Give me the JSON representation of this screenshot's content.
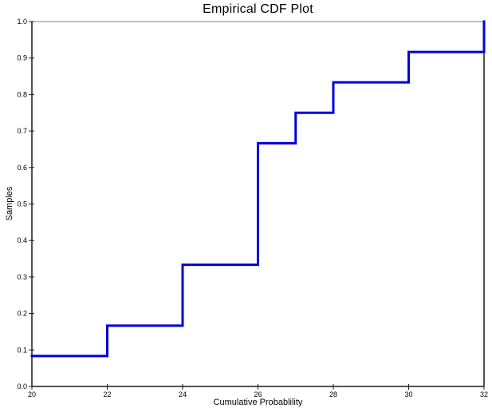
{
  "chart_data": {
    "type": "line",
    "subtype": "empirical-cdf-step",
    "title": "Empirical CDF Plot",
    "xlabel": "Cumulative Probablility",
    "ylabel": "Samples",
    "xlim": [
      20,
      32
    ],
    "ylim": [
      0.0,
      1.0
    ],
    "xticks": [
      20,
      22,
      24,
      26,
      28,
      30,
      32
    ],
    "xtick_labels": [
      "20",
      "22",
      "24",
      "26",
      "28",
      "30",
      "32"
    ],
    "yticks": [
      0.0,
      0.1,
      0.2,
      0.3,
      0.4,
      0.5,
      0.6,
      0.7,
      0.8,
      0.9,
      1.0
    ],
    "ytick_labels": [
      "0.0",
      "0.1",
      "0.2",
      "0.3",
      "0.4",
      "0.5",
      "0.6",
      "0.7",
      "0.8",
      "0.9",
      "1.0"
    ],
    "grid": false,
    "legend_position": "none",
    "line_color": "#0000DC",
    "line_width": 3,
    "axis_color": "#1a1a1a",
    "frame_top_color": "#808080",
    "points": [
      {
        "x": 20,
        "y": 0.0833
      },
      {
        "x": 22,
        "y": 0.0833
      },
      {
        "x": 22,
        "y": 0.1667
      },
      {
        "x": 24,
        "y": 0.1667
      },
      {
        "x": 24,
        "y": 0.3333
      },
      {
        "x": 26,
        "y": 0.3333
      },
      {
        "x": 26,
        "y": 0.6667
      },
      {
        "x": 27,
        "y": 0.6667
      },
      {
        "x": 27,
        "y": 0.75
      },
      {
        "x": 28,
        "y": 0.75
      },
      {
        "x": 28,
        "y": 0.8333
      },
      {
        "x": 30,
        "y": 0.8333
      },
      {
        "x": 30,
        "y": 0.9167
      },
      {
        "x": 32,
        "y": 0.9167
      },
      {
        "x": 32,
        "y": 1.0
      }
    ]
  }
}
